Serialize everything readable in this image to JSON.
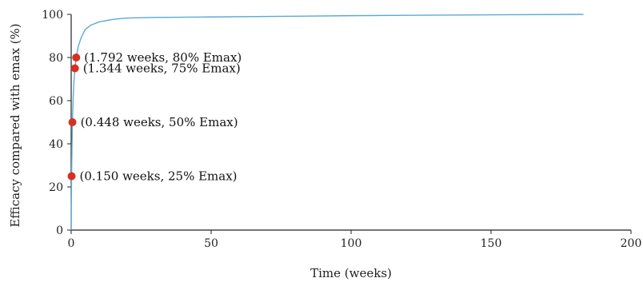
{
  "chart_data": {
    "type": "line",
    "title": "",
    "xlabel": "Time (weeks)",
    "ylabel": "Efficacy compared with emax (%)",
    "xlim": [
      0,
      200
    ],
    "ylim": [
      0,
      100
    ],
    "xticks": [
      0,
      50,
      100,
      150,
      200
    ],
    "yticks": [
      0,
      20,
      40,
      60,
      80,
      100
    ],
    "grid": false,
    "legend": "none",
    "colors": {
      "curve": "#5aaad6",
      "points": "#d7301f"
    },
    "series": [
      {
        "x": [
          0,
          0.05,
          0.15,
          0.3,
          0.448,
          0.7,
          1.0,
          1.344,
          1.792,
          2.5,
          3.5,
          5,
          7,
          10,
          15,
          20,
          30,
          50,
          75,
          100,
          125,
          150,
          183
        ],
        "y": [
          0,
          10,
          25,
          40,
          50,
          61,
          69,
          75,
          80,
          85,
          89,
          93,
          95,
          96.5,
          97.7,
          98.3,
          98.6,
          98.8,
          99.1,
          99.4,
          99.6,
          99.8,
          100
        ]
      }
    ],
    "points": [
      {
        "x": 0.15,
        "y": 25,
        "label": "(0.150 weeks, 25% Emax)"
      },
      {
        "x": 0.448,
        "y": 50,
        "label": "(0.448 weeks, 50% Emax)"
      },
      {
        "x": 1.344,
        "y": 75,
        "label": "(1.344 weeks, 75% Emax)"
      },
      {
        "x": 1.792,
        "y": 80,
        "label": "(1.792 weeks, 80% Emax)"
      }
    ]
  }
}
